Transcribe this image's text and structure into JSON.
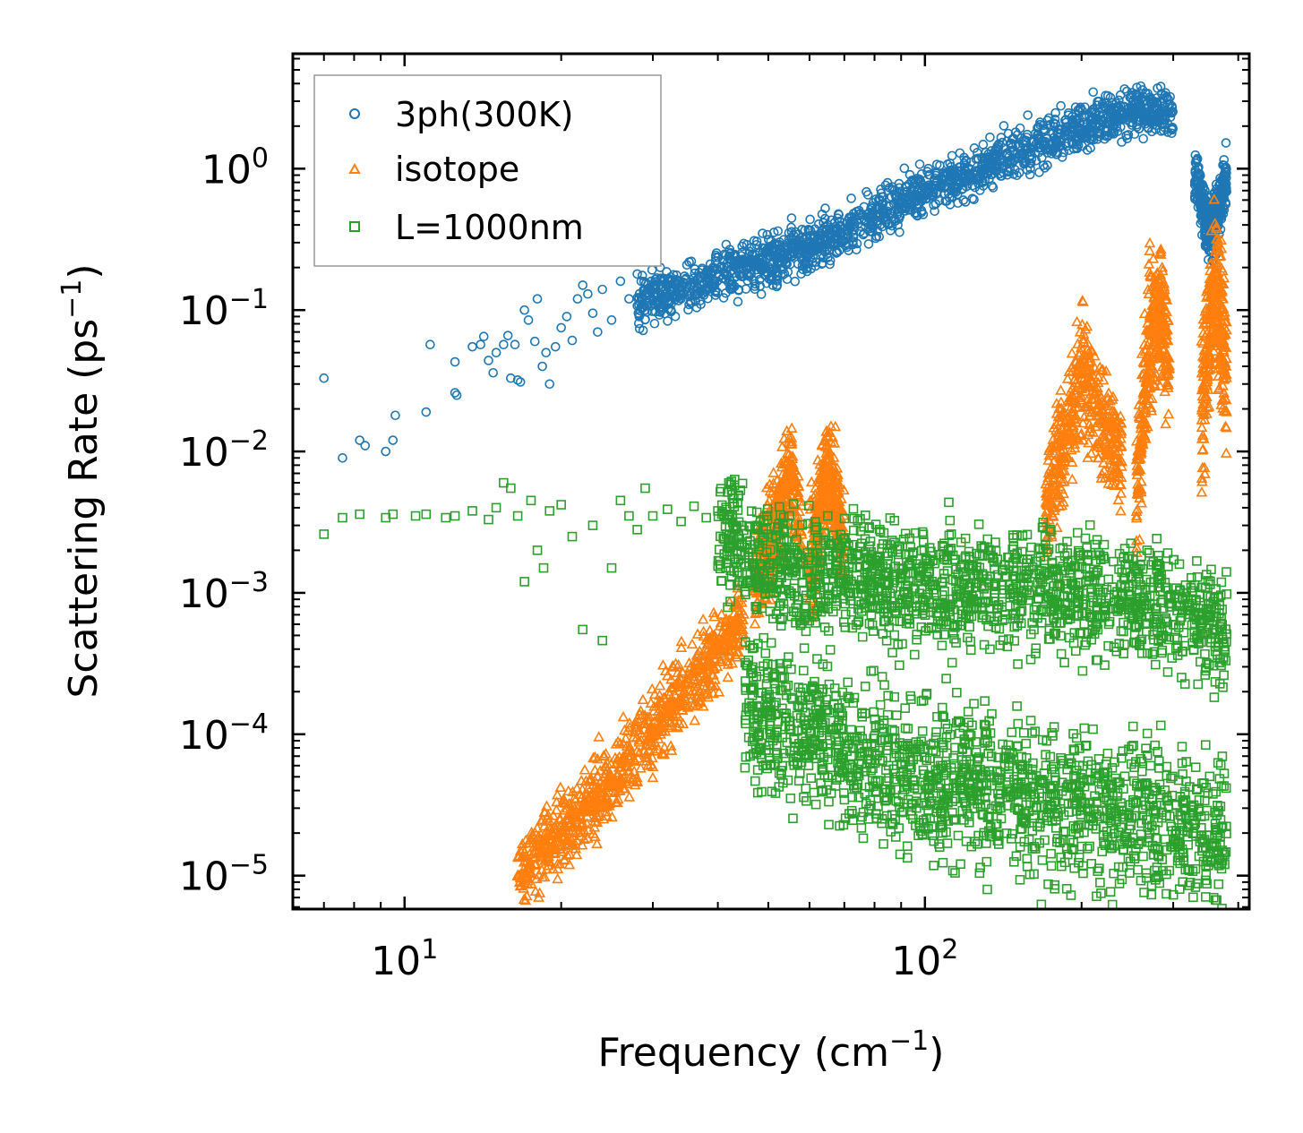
{
  "chart_data": {
    "type": "scatter",
    "title": "",
    "xlabel": "Frequency (cm",
    "xlabel_sup": "−1",
    "xlabel_tail": ")",
    "ylabel": "Scattering Rate (ps",
    "ylabel_sup": "−1",
    "ylabel_tail": ")",
    "xscale": "log",
    "yscale": "log",
    "xlim": [
      6.1,
      420
    ],
    "ylim": [
      5.8e-06,
      6.5
    ],
    "x_major_ticks": [
      10,
      100
    ],
    "x_tick_labels": [
      {
        "base": "10",
        "exp": "1"
      },
      {
        "base": "10",
        "exp": "2"
      }
    ],
    "y_major_ticks": [
      1e-05,
      0.0001,
      0.001,
      0.01,
      0.1,
      1
    ],
    "y_tick_labels": [
      {
        "base": "10",
        "exp": "−5"
      },
      {
        "base": "10",
        "exp": "−4"
      },
      {
        "base": "10",
        "exp": "−3"
      },
      {
        "base": "10",
        "exp": "−2"
      },
      {
        "base": "10",
        "exp": "−1"
      },
      {
        "base": "10",
        "exp": "0"
      }
    ],
    "legend_position": "top-left",
    "series": [
      {
        "name": "3ph(300K)",
        "marker": "circle",
        "color": "#1f77b4",
        "points": [
          [
            7.0,
            0.033
          ],
          [
            7.6,
            0.009
          ],
          [
            8.2,
            0.012
          ],
          [
            8.4,
            0.011
          ],
          [
            9.2,
            0.01
          ],
          [
            9.5,
            0.012
          ],
          [
            9.6,
            0.018
          ],
          [
            11.0,
            0.019
          ],
          [
            11.2,
            0.057
          ],
          [
            12.5,
            0.026
          ],
          [
            12.5,
            0.043
          ],
          [
            12.6,
            0.025
          ],
          [
            13.5,
            0.055
          ],
          [
            14.0,
            0.057
          ],
          [
            14.2,
            0.065
          ],
          [
            14.5,
            0.044
          ],
          [
            14.8,
            0.036
          ],
          [
            15.0,
            0.05
          ],
          [
            15.5,
            0.057
          ],
          [
            15.8,
            0.066
          ],
          [
            16.0,
            0.033
          ],
          [
            16.3,
            0.057
          ],
          [
            16.5,
            0.032
          ],
          [
            16.7,
            0.031
          ],
          [
            17.0,
            0.1
          ],
          [
            17.3,
            0.085
          ],
          [
            17.8,
            0.06
          ],
          [
            18.0,
            0.12
          ],
          [
            18.4,
            0.04
          ],
          [
            18.7,
            0.05
          ],
          [
            19.0,
            0.03
          ],
          [
            19.5,
            0.055
          ],
          [
            20.0,
            0.075
          ],
          [
            20.5,
            0.09
          ],
          [
            21.0,
            0.061
          ],
          [
            21.5,
            0.12
          ],
          [
            22.0,
            0.15
          ],
          [
            22.5,
            0.13
          ],
          [
            23.0,
            0.095
          ],
          [
            23.5,
            0.07
          ],
          [
            24.0,
            0.14
          ],
          [
            25.0,
            0.085
          ],
          [
            26.0,
            0.16
          ],
          [
            27.0,
            0.12
          ],
          [
            28.0,
            0.18
          ],
          [
            29.0,
            0.1
          ],
          [
            30.0,
            0.15
          ],
          [
            31.0,
            0.2
          ]
        ]
      },
      {
        "name": "isotope",
        "marker": "triangle",
        "color": "#ff7f0e",
        "points": [
          [
            16.5,
            1e-05
          ],
          [
            17.2,
            1.1e-05
          ],
          [
            17.9,
            1.2e-05
          ],
          [
            18.8,
            1.3e-05
          ],
          [
            19.5,
            1.5e-05
          ],
          [
            20.2,
            1.8e-05
          ],
          [
            21.0,
            2.2e-05
          ],
          [
            22.0,
            2.8e-05
          ],
          [
            23.0,
            3.4e-05
          ],
          [
            24.0,
            4.3e-05
          ],
          [
            25.0,
            5e-05
          ],
          [
            26.0,
            5.8e-05
          ],
          [
            27.0,
            7e-05
          ],
          [
            28.5,
            9e-05
          ],
          [
            30.0,
            0.00011
          ],
          [
            32.0,
            0.00014
          ],
          [
            34.0,
            0.00018
          ],
          [
            36.0,
            0.00024
          ],
          [
            38.0,
            0.0003
          ],
          [
            40.0,
            0.0004
          ],
          [
            42.0,
            0.00055
          ],
          [
            44.0,
            0.0007
          ]
        ]
      },
      {
        "name": "L=1000nm",
        "marker": "square",
        "color": "#2ca02c",
        "points": [
          [
            7.0,
            0.0026
          ],
          [
            7.6,
            0.0034
          ],
          [
            8.2,
            0.0036
          ],
          [
            9.2,
            0.0034
          ],
          [
            9.5,
            0.0036
          ],
          [
            10.5,
            0.0035
          ],
          [
            11.0,
            0.0036
          ],
          [
            12.0,
            0.0034
          ],
          [
            12.5,
            0.0035
          ],
          [
            13.5,
            0.0038
          ],
          [
            14.5,
            0.0033
          ],
          [
            15.0,
            0.004
          ],
          [
            15.5,
            0.006
          ],
          [
            16.0,
            0.0055
          ],
          [
            16.5,
            0.0035
          ],
          [
            17.0,
            0.0012
          ],
          [
            17.5,
            0.0045
          ],
          [
            18.0,
            0.002
          ],
          [
            18.5,
            0.0015
          ],
          [
            19.0,
            0.0038
          ],
          [
            20.0,
            0.0042
          ],
          [
            21.0,
            0.0025
          ],
          [
            22.0,
            0.00055
          ],
          [
            23.0,
            0.003
          ],
          [
            24.0,
            0.00046
          ],
          [
            25.0,
            0.0015
          ],
          [
            26.0,
            0.0045
          ],
          [
            27.0,
            0.0035
          ],
          [
            28.0,
            0.0028
          ],
          [
            29.0,
            0.0055
          ],
          [
            30.0,
            0.0035
          ],
          [
            32.0,
            0.0039
          ],
          [
            34.0,
            0.0032
          ],
          [
            36.0,
            0.0041
          ],
          [
            38.0,
            0.0034
          ],
          [
            40.0,
            0.0038
          ]
        ]
      }
    ],
    "dense_regions": [
      {
        "series": "3ph(300K)",
        "description": "dense band following the main trend",
        "x_range": [
          28,
          300
        ],
        "trend": [
          [
            28,
            0.11
          ],
          [
            40,
            0.17
          ],
          [
            60,
            0.28
          ],
          [
            80,
            0.45
          ],
          [
            100,
            0.7
          ],
          [
            130,
            1.0
          ],
          [
            170,
            1.6
          ],
          [
            220,
            2.3
          ],
          [
            260,
            2.7
          ],
          [
            300,
            2.3
          ]
        ],
        "spread_dex": 0.14
      },
      {
        "series": "3ph(300K)",
        "description": "optical cluster with dip",
        "x_range": [
          330,
          380
        ],
        "trend": [
          [
            330,
            1.0
          ],
          [
            345,
            0.45
          ],
          [
            355,
            0.35
          ],
          [
            370,
            0.6
          ],
          [
            380,
            0.9
          ]
        ],
        "spread_dex": 0.18
      },
      {
        "series": "isotope",
        "description": "acoustic rising branch",
        "x_range": [
          16.5,
          45
        ],
        "trend": [
          [
            16.5,
            1e-05
          ],
          [
            22,
            2.8e-05
          ],
          [
            30,
            0.00011
          ],
          [
            38,
            0.0003
          ],
          [
            45,
            0.0007
          ]
        ],
        "spread_dex": 0.22
      },
      {
        "series": "isotope",
        "description": "spike near 55",
        "x_range": [
          47,
          58
        ],
        "trend": [
          [
            47,
            0.0012
          ],
          [
            52,
            0.003
          ],
          [
            55,
            0.008
          ],
          [
            58,
            0.0025
          ]
        ],
        "spread_dex": 0.3
      },
      {
        "series": "isotope",
        "description": "spike near 65",
        "x_range": [
          60,
          70
        ],
        "trend": [
          [
            60,
            0.0015
          ],
          [
            63,
            0.004
          ],
          [
            65,
            0.008
          ],
          [
            70,
            0.002
          ]
        ],
        "spread_dex": 0.3
      },
      {
        "series": "isotope",
        "description": "high-frequency broad cluster",
        "x_range": [
          170,
          240
        ],
        "trend": [
          [
            170,
            0.003
          ],
          [
            185,
            0.012
          ],
          [
            200,
            0.04
          ],
          [
            220,
            0.015
          ],
          [
            240,
            0.008
          ]
        ],
        "spread_dex": 0.35
      },
      {
        "series": "isotope",
        "description": "tall spikes near 260-290",
        "x_range": [
          255,
          295
        ],
        "trend": [
          [
            255,
            0.005
          ],
          [
            270,
            0.06
          ],
          [
            285,
            0.12
          ],
          [
            295,
            0.03
          ]
        ],
        "spread_dex": 0.4
      },
      {
        "series": "isotope",
        "description": "tall spikes near 340-380",
        "x_range": [
          340,
          380
        ],
        "trend": [
          [
            340,
            0.02
          ],
          [
            355,
            0.1
          ],
          [
            365,
            0.13
          ],
          [
            380,
            0.03
          ]
        ],
        "spread_dex": 0.45
      },
      {
        "series": "L=1000nm",
        "description": "dense band through mid/high frequencies",
        "x_range": [
          40,
          380
        ],
        "trend": [
          [
            40,
            0.0028
          ],
          [
            50,
            0.0015
          ],
          [
            70,
            0.0013
          ],
          [
            100,
            0.0012
          ],
          [
            150,
            0.0011
          ],
          [
            200,
            0.001
          ],
          [
            300,
            0.0008
          ],
          [
            380,
            0.0005
          ]
        ],
        "spread_dex": 0.35
      },
      {
        "series": "L=1000nm",
        "description": "sparse low tail",
        "x_range": [
          45,
          380
        ],
        "trend": [
          [
            45,
            0.00015
          ],
          [
            100,
            5e-05
          ],
          [
            200,
            3e-05
          ],
          [
            380,
            2e-05
          ]
        ],
        "spread_dex": 0.45
      }
    ]
  }
}
